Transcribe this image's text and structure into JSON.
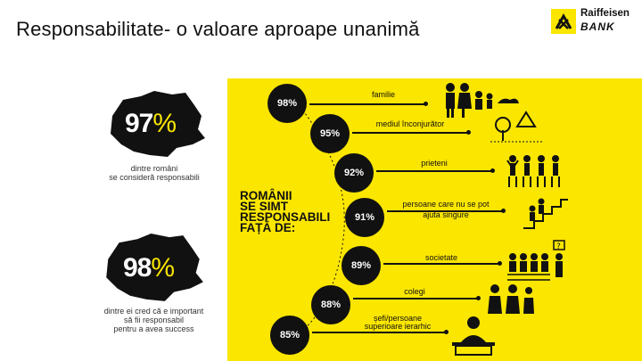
{
  "slide": {
    "title": "Responsabilitate- o valoare aproape unanimă"
  },
  "logo": {
    "name": "Raiffeisen",
    "bank": "BANK"
  },
  "left_stats": [
    {
      "value": "97",
      "unit": "%",
      "caption_lines": [
        "dintre români",
        "se consideră responsabili"
      ]
    },
    {
      "value": "98",
      "unit": "%",
      "caption_lines": [
        "dintre ei cred că e important",
        "să fii responsabil",
        "pentru a avea success"
      ]
    }
  ],
  "headline_lines": [
    "ROMÂNII",
    "SE SIMT",
    "RESPONSABILI",
    "FAȚĂ DE:"
  ],
  "responsibility_items": [
    {
      "percent": "98%",
      "label_lines": [
        "familie"
      ],
      "icon": "family-icon"
    },
    {
      "percent": "95%",
      "label_lines": [
        "mediul înconjurător"
      ],
      "icon": "environment-icon"
    },
    {
      "percent": "92%",
      "label_lines": [
        "prieteni"
      ],
      "icon": "friends-icon"
    },
    {
      "percent": "91%",
      "label_lines": [
        "persoane care nu se pot",
        "ajuta singure"
      ],
      "icon": "help-stairs-icon"
    },
    {
      "percent": "89%",
      "label_lines": [
        "societate"
      ],
      "icon": "society-icon"
    },
    {
      "percent": "88%",
      "label_lines": [
        "colegi"
      ],
      "icon": "colleagues-icon"
    },
    {
      "percent": "85%",
      "label_lines": [
        "șefi/persoane",
        "superioare ierarhic"
      ],
      "icon": "boss-icon"
    }
  ],
  "colors": {
    "accent": "#fbe600",
    "dark": "#111111"
  }
}
